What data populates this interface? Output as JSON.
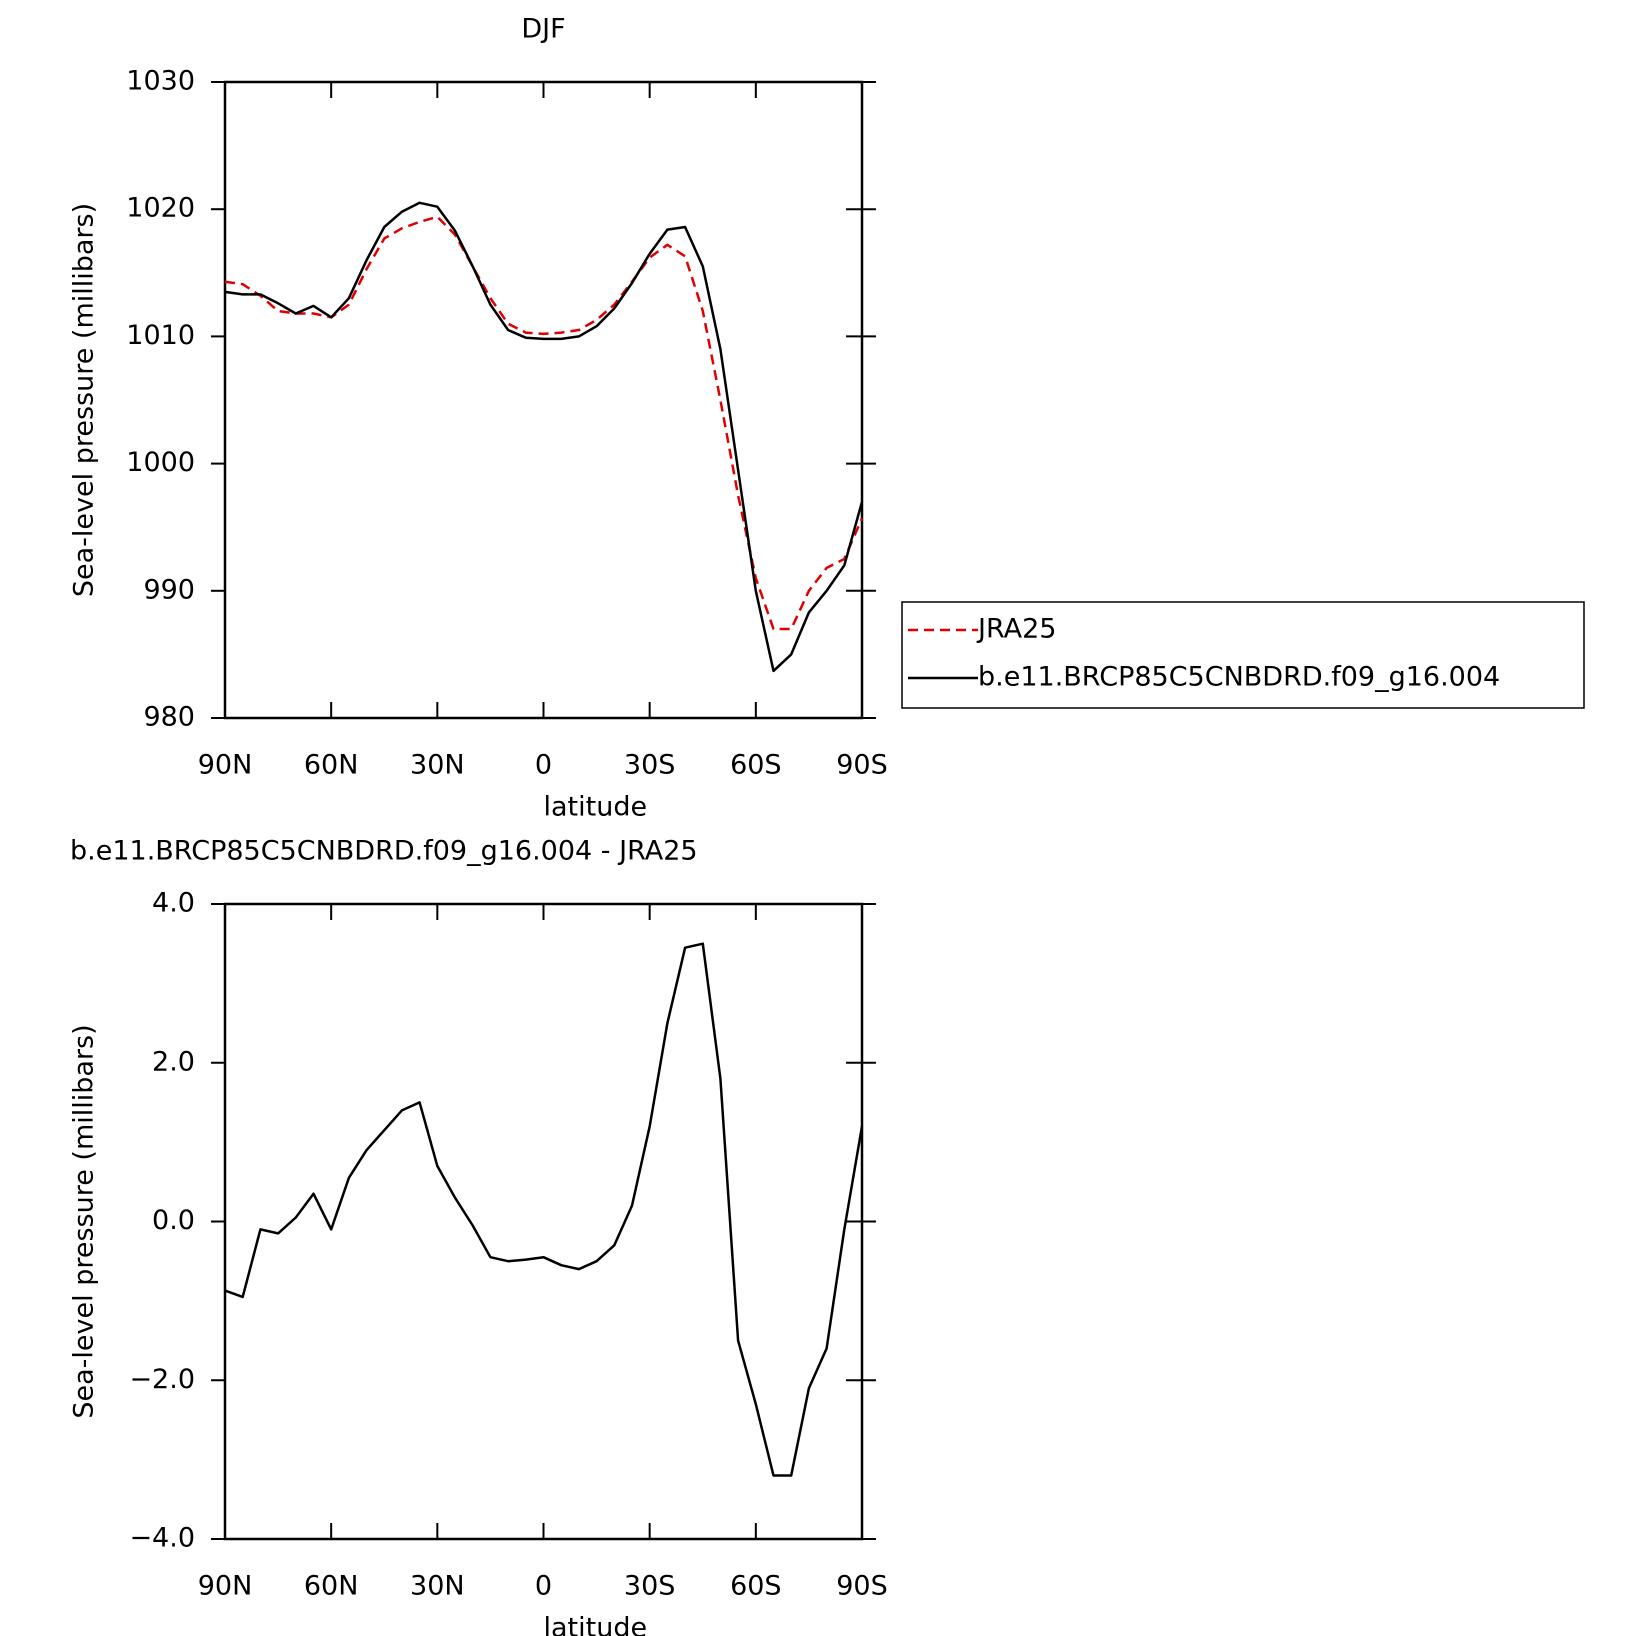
{
  "chart_data": [
    {
      "type": "line",
      "title": "DJF",
      "xlabel": "latitude",
      "ylabel": "Sea-level pressure (millibars)",
      "x": [
        90,
        85,
        80,
        75,
        70,
        65,
        60,
        55,
        50,
        45,
        40,
        35,
        30,
        25,
        20,
        15,
        10,
        5,
        0,
        -5,
        -10,
        -15,
        -20,
        -25,
        -30,
        -35,
        -40,
        -45,
        -50,
        -55,
        -60,
        -65,
        -70,
        -75,
        -80,
        -85,
        -90
      ],
      "xlim": [
        90,
        -90
      ],
      "xticks": [
        {
          "value": 90,
          "label": "90N"
        },
        {
          "value": 60,
          "label": "60N"
        },
        {
          "value": 30,
          "label": "30N"
        },
        0,
        {
          "value": -30,
          "label": "30S"
        },
        {
          "value": -60,
          "label": "60S"
        },
        {
          "value": -90,
          "label": "90S"
        }
      ],
      "ylim": [
        980,
        1030
      ],
      "yticks": [
        980,
        990,
        1000,
        1010,
        1020,
        1030
      ],
      "series": [
        {
          "name": "JRA25",
          "color": "#e00000",
          "dash": true,
          "values": [
            1014.3,
            1014.1,
            1013.2,
            1012,
            1011.8,
            1011.8,
            1011.5,
            1012.5,
            1015.3,
            1017.7,
            1018.5,
            1019,
            1019.4,
            1018,
            1015.5,
            1013,
            1011,
            1010.3,
            1010.2,
            1010.3,
            1010.5,
            1011.3,
            1012.5,
            1014.3,
            1016.2,
            1017.2,
            1016.3,
            1012,
            1005,
            997.5,
            991,
            987,
            987,
            990,
            991.8,
            992.5,
            995.7
          ]
        },
        {
          "name": "b.e11.BRCP85C5CNBDRD.f09_g16.004",
          "color": "#000000",
          "dash": false,
          "values": [
            1013.5,
            1013.3,
            1013.3,
            1012.6,
            1011.8,
            1012.4,
            1011.5,
            1013,
            1016,
            1018.6,
            1019.8,
            1020.5,
            1020.2,
            1018.3,
            1015.5,
            1012.5,
            1010.5,
            1009.9,
            1009.8,
            1009.8,
            1010,
            1010.8,
            1012.2,
            1014.2,
            1016.5,
            1018.4,
            1018.6,
            1015.5,
            1009,
            999.5,
            990,
            983.7,
            985,
            988.3,
            990,
            992,
            997
          ]
        }
      ]
    },
    {
      "type": "line",
      "title": "b.e11.BRCP85C5CNBDRD.f09_g16.004 - JRA25",
      "xlabel": "latitude",
      "ylabel": "Sea-level pressure (millibars)",
      "x": [
        90,
        85,
        80,
        75,
        70,
        65,
        60,
        55,
        50,
        45,
        40,
        35,
        30,
        25,
        20,
        15,
        10,
        5,
        0,
        -5,
        -10,
        -15,
        -20,
        -25,
        -30,
        -35,
        -40,
        -45,
        -50,
        -55,
        -60,
        -65,
        -70,
        -75,
        -80,
        -85,
        -90
      ],
      "xlim": [
        90,
        -90
      ],
      "xticks": [
        {
          "value": 90,
          "label": "90N"
        },
        {
          "value": 60,
          "label": "60N"
        },
        {
          "value": 30,
          "label": "30N"
        },
        0,
        {
          "value": -30,
          "label": "30S"
        },
        {
          "value": -60,
          "label": "60S"
        },
        {
          "value": -90,
          "label": "90S"
        }
      ],
      "ylim": [
        -4,
        4
      ],
      "yticks": [
        {
          "value": -4,
          "label": "−4.0"
        },
        {
          "value": -2,
          "label": "−2.0"
        },
        {
          "value": 0,
          "label": "0.0"
        },
        {
          "value": 2,
          "label": "2.0"
        },
        {
          "value": 4,
          "label": "4.0"
        }
      ],
      "series": [
        {
          "color": "#000000",
          "dash": false,
          "values": [
            -0.87,
            -0.95,
            -0.1,
            -0.15,
            0.05,
            0.35,
            -0.1,
            0.55,
            0.9,
            1.15,
            1.4,
            1.5,
            0.7,
            0.3,
            -0.05,
            -0.45,
            -0.5,
            -0.48,
            -0.45,
            -0.55,
            -0.6,
            -0.5,
            -0.3,
            0.2,
            1.2,
            2.5,
            3.45,
            3.5,
            1.8,
            -1.5,
            -2.3,
            -3.2,
            -3.2,
            -2.1,
            -1.6,
            -0.1,
            1.2
          ]
        }
      ]
    }
  ]
}
